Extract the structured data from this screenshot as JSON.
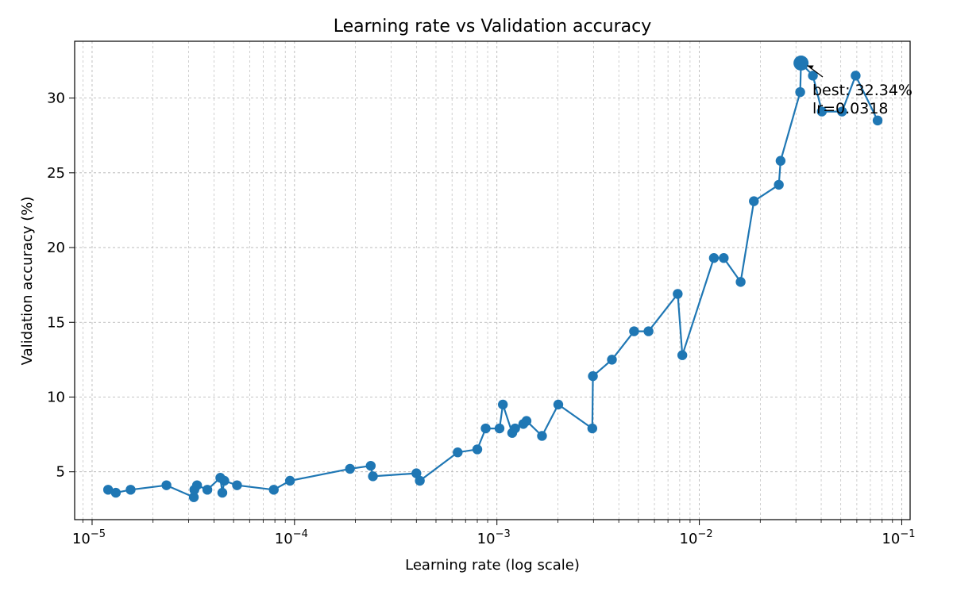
{
  "chart_data": {
    "type": "line",
    "title": "Learning rate vs Validation accuracy",
    "xlabel": "Learning rate (log scale)",
    "ylabel": "Validation accuracy (%)",
    "x_scale": "log",
    "xlim": [
      8.2e-06,
      0.11
    ],
    "ylim": [
      1.8,
      33.8
    ],
    "x_ticks": [
      {
        "value": 1e-05,
        "base": "10",
        "exp": "−5"
      },
      {
        "value": 0.0001,
        "base": "10",
        "exp": "−4"
      },
      {
        "value": 0.001,
        "base": "10",
        "exp": "−3"
      },
      {
        "value": 0.01,
        "base": "10",
        "exp": "−2"
      },
      {
        "value": 0.1,
        "base": "10",
        "exp": "−1"
      }
    ],
    "y_ticks": [
      5,
      10,
      15,
      20,
      25,
      30
    ],
    "grid": true,
    "color": "#1f77b4",
    "series": [
      {
        "x": [
          1.2e-05,
          1.31e-05,
          1.55e-05,
          2.33e-05,
          3.18e-05,
          3.2e-05,
          3.3e-05,
          3.71e-05,
          4.3e-05,
          4.4e-05,
          4.5e-05,
          5.2e-05,
          7.9e-05,
          9.5e-05,
          0.000188,
          0.000238,
          0.000244,
          0.0004,
          0.000416,
          0.00064,
          0.0008,
          0.00088,
          0.00103,
          0.00107,
          0.00119,
          0.00123,
          0.00135,
          0.0014,
          0.00167,
          0.00201,
          0.00296,
          0.00298,
          0.0037,
          0.00476,
          0.00561,
          0.00782,
          0.00824,
          0.0118,
          0.0132,
          0.016,
          0.0186,
          0.0247,
          0.0252,
          0.0315,
          0.0318,
          0.0364,
          0.0403,
          0.0507,
          0.0592,
          0.076
        ],
        "y": [
          3.8,
          3.6,
          3.8,
          4.1,
          3.3,
          3.8,
          4.1,
          3.8,
          4.6,
          3.6,
          4.4,
          4.1,
          3.8,
          4.4,
          5.2,
          5.4,
          4.7,
          4.9,
          4.4,
          6.3,
          6.5,
          7.9,
          7.9,
          9.5,
          7.6,
          7.9,
          8.2,
          8.4,
          7.4,
          9.5,
          7.9,
          11.4,
          12.5,
          14.4,
          14.4,
          16.9,
          12.8,
          19.3,
          19.3,
          17.7,
          23.1,
          24.2,
          25.8,
          30.4,
          32.34,
          31.5,
          29.1,
          29.1,
          31.5,
          28.5
        ]
      }
    ],
    "annotation": {
      "text_line1": "best: 32.34%",
      "text_line2": "lr=0.0318",
      "x": 0.0318,
      "y": 32.34
    }
  }
}
